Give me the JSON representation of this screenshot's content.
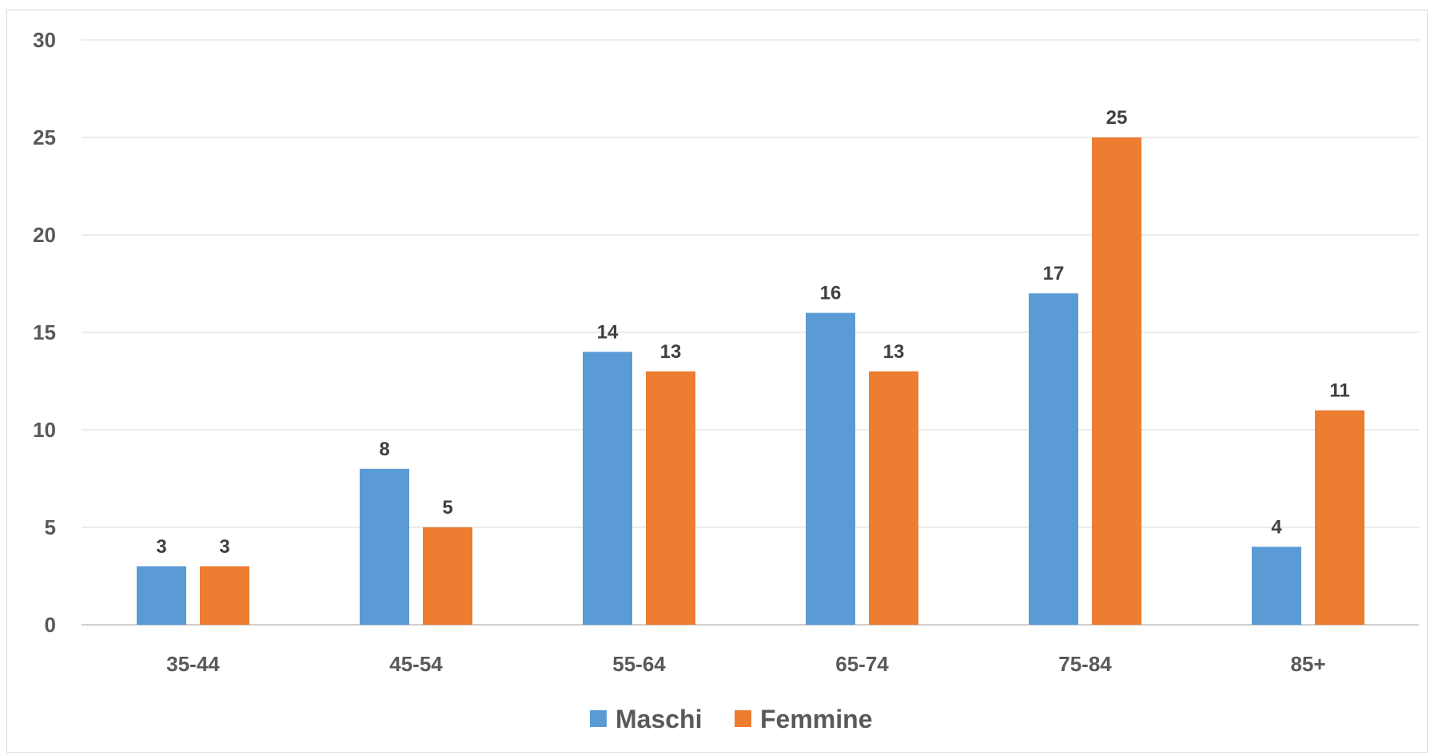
{
  "chart_data": {
    "type": "bar",
    "categories": [
      "35-44",
      "45-54",
      "55-64",
      "65-74",
      "75-84",
      "85+"
    ],
    "series": [
      {
        "name": "Maschi",
        "color": "#5b9bd5",
        "values": [
          3,
          8,
          14,
          16,
          17,
          4
        ]
      },
      {
        "name": "Femmine",
        "color": "#ed7d31",
        "values": [
          3,
          5,
          13,
          13,
          25,
          11
        ]
      }
    ],
    "title": "",
    "xlabel": "",
    "ylabel": "",
    "ylim": [
      0,
      30
    ],
    "yticks": [
      0,
      5,
      10,
      15,
      20,
      25,
      30
    ],
    "grid": true,
    "legend": "bottom",
    "data_labels": true
  }
}
